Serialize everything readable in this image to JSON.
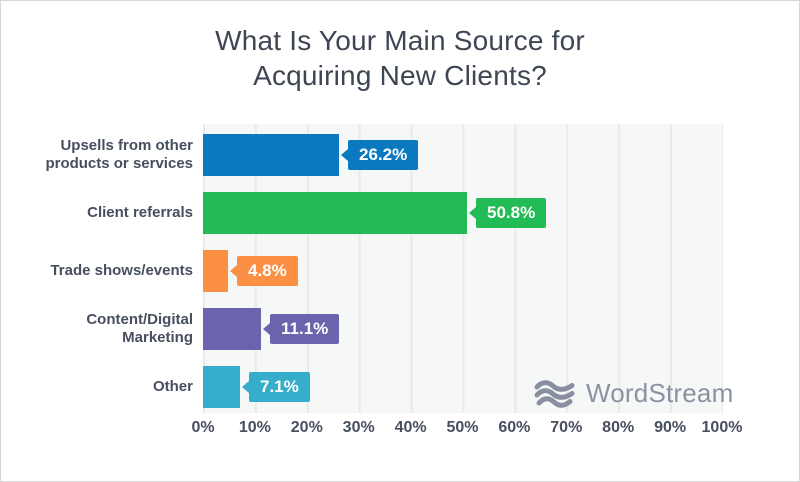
{
  "title": {
    "line1": "What Is Your Main Source for",
    "line2": "Acquiring New Clients?"
  },
  "watermark": {
    "icon": "waves-icon",
    "text": "WordStream",
    "color": "#8a92a2"
  },
  "colors": {
    "plot_background": "#f6f7f7",
    "grid_line": "#e9eaeb",
    "title_text": "#3e4654",
    "label_text": "#474f5f"
  },
  "chart_data": {
    "type": "bar",
    "orientation": "horizontal",
    "title": "What Is Your Main Source for Acquiring New Clients?",
    "categories": [
      "Upsells from other\nproducts or services",
      "Client referrals",
      "Trade shows/events",
      "Content/Digital\nMarketing",
      "Other"
    ],
    "values": [
      26.2,
      50.8,
      4.8,
      11.1,
      7.1
    ],
    "value_labels": [
      "26.2%",
      "50.8%",
      "4.8%",
      "11.1%",
      "7.1%"
    ],
    "bar_colors": [
      "#0b79bf",
      "#22bb55",
      "#fb8f44",
      "#6a64ad",
      "#36adca"
    ],
    "x_ticks": [
      "0%",
      "10%",
      "20%",
      "30%",
      "40%",
      "50%",
      "60%",
      "70%",
      "80%",
      "90%",
      "100%"
    ],
    "xlim": [
      0,
      100
    ],
    "grid": "vertical",
    "legend": false
  }
}
